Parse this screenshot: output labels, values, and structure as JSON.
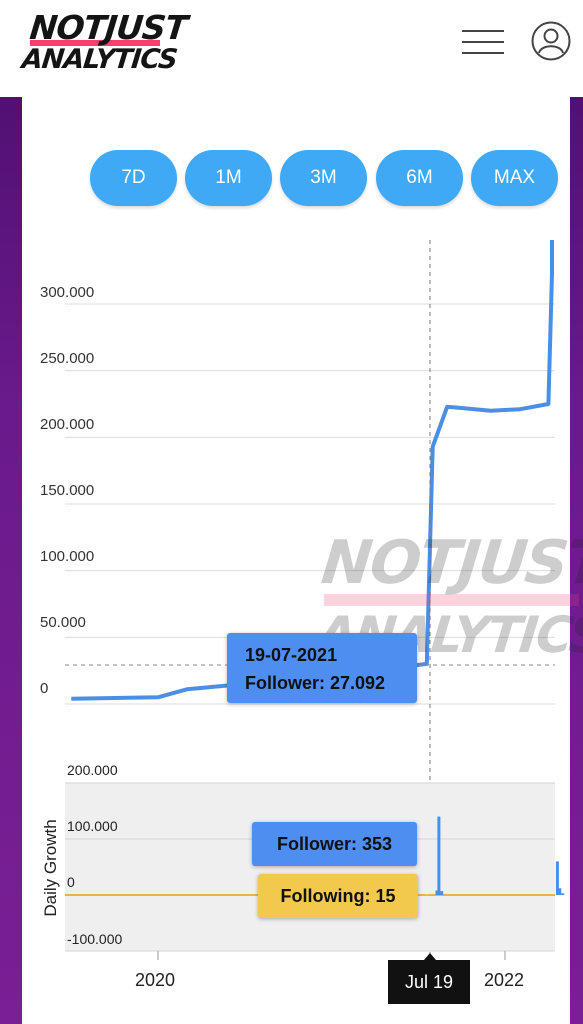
{
  "header": {
    "logo_line1": "NOTJUST",
    "logo_line2": "ANALYTICS"
  },
  "range_buttons": [
    "7D",
    "1M",
    "3M",
    "6M",
    "MAX"
  ],
  "watermark": {
    "line1": "NOTJUST",
    "line2": "ANALYTICS"
  },
  "main_chart": {
    "y_ticks": [
      "300.000",
      "250.000",
      "200.000",
      "150.000",
      "100.000",
      "50.000",
      "0"
    ],
    "tooltip_date": "19-07-2021",
    "tooltip_value": "Follower: 27.092"
  },
  "growth_chart": {
    "title": "Daily Growth",
    "y_ticks": [
      "200.000",
      "100.000",
      "0",
      "-100.000"
    ],
    "tooltip_follower": "Follower: 353",
    "tooltip_following": "Following: 15"
  },
  "x_axis": {
    "labels": [
      "2020",
      "2022"
    ],
    "cursor_label": "Jul 19"
  },
  "chart_data": [
    {
      "type": "line",
      "series": [
        {
          "x": [
            "2019-07",
            "2019-10",
            "2020-01",
            "2020-03",
            "2020-06",
            "2020-09",
            "2020-12",
            "2021-03",
            "2021-06",
            "2021-07-19",
            "2021-08",
            "2021-09",
            "2021-10",
            "2021-12",
            "2022-02",
            "2022-04",
            "2022-05",
            "2022-06",
            "2022-07"
          ],
          "y": [
            1000,
            1500,
            2000,
            8000,
            11000,
            14000,
            18000,
            22000,
            25000,
            27092,
            190000,
            220000,
            219000,
            217000,
            218000,
            222000,
            320000,
            340000,
            345000
          ]
        }
      ],
      "ylim": [
        0,
        340000
      ],
      "y_ticks": [
        "0",
        "50.000",
        "100.000",
        "150.000",
        "200.000",
        "250.000",
        "300.000"
      ],
      "x_ticks": [
        "2020",
        "2022"
      ],
      "annotation": "19-07-2021 Follower: 27.092"
    },
    {
      "type": "bar",
      "ylabel": "Daily Growth",
      "series": [
        {
          "name": "Follower",
          "x": [
            "2021-07-19",
            "2021-08-10",
            "2021-08-14",
            "2021-08-20",
            "2022-04-20",
            "2022-04-25",
            "2022-05-01"
          ],
          "values": [
            353,
            8000,
            140000,
            7000,
            60000,
            12000,
            3000
          ]
        },
        {
          "name": "Following",
          "x": [
            "2021-07-19"
          ],
          "values": [
            15
          ]
        }
      ],
      "ylim": [
        -100000,
        200000
      ],
      "y_ticks": [
        "200.000",
        "100.000",
        "0",
        "-100.000"
      ]
    }
  ],
  "colors": {
    "accent": "#3fa9f5",
    "line": "#4a8fe7",
    "following": "#f2c94c",
    "logo_stripe": "#ff3d6e"
  }
}
